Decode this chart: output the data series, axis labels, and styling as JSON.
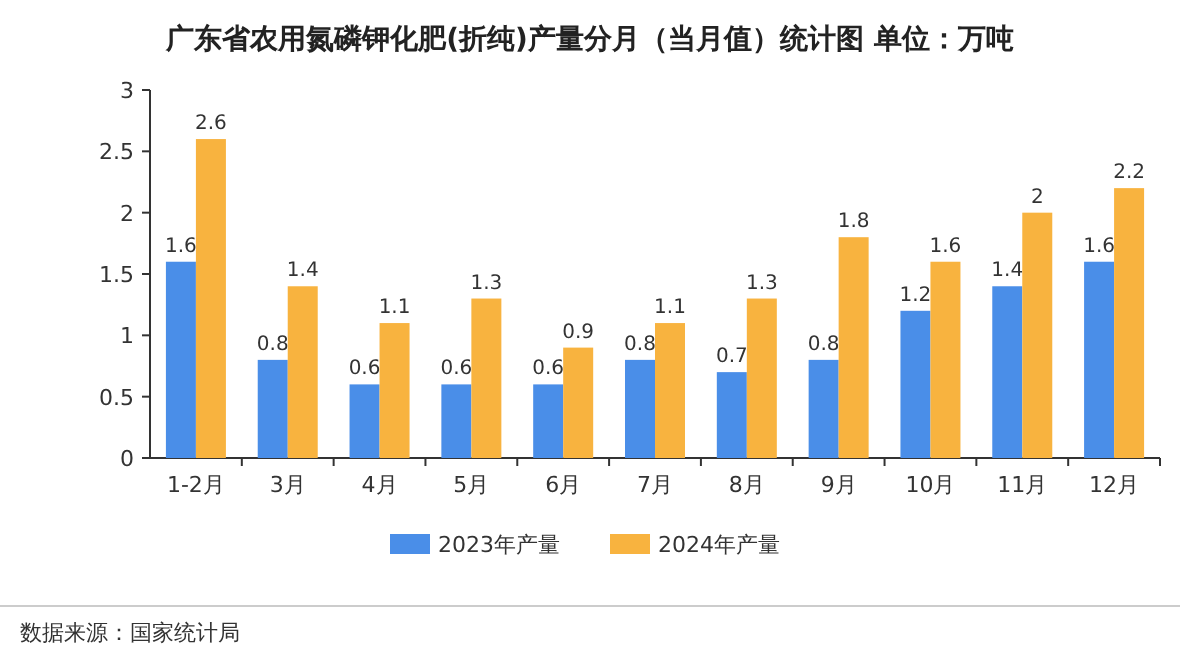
{
  "chart_data": {
    "type": "bar",
    "title": "广东省农用氮磷钾化肥(折纯)产量分月（当月值）统计图 单位：万吨",
    "categories": [
      "1-2月",
      "3月",
      "4月",
      "5月",
      "6月",
      "7月",
      "8月",
      "9月",
      "10月",
      "11月",
      "12月"
    ],
    "series": [
      {
        "name": "2023年产量",
        "color": "#4a8ee8",
        "values": [
          1.6,
          0.8,
          0.6,
          0.6,
          0.6,
          0.8,
          0.7,
          0.8,
          1.2,
          1.4,
          1.6
        ]
      },
      {
        "name": "2024年产量",
        "color": "#f8b33f",
        "values": [
          2.6,
          1.4,
          1.1,
          1.3,
          0.9,
          1.1,
          1.3,
          1.8,
          1.6,
          2,
          2.2
        ]
      }
    ],
    "ylim": [
      0,
      3
    ],
    "yticks": [
      0,
      0.5,
      1,
      1.5,
      2,
      2.5,
      3
    ],
    "grid": false,
    "legend": "bottom",
    "data_labels": true,
    "annotations": [
      "数据来源：国家统计局"
    ]
  }
}
